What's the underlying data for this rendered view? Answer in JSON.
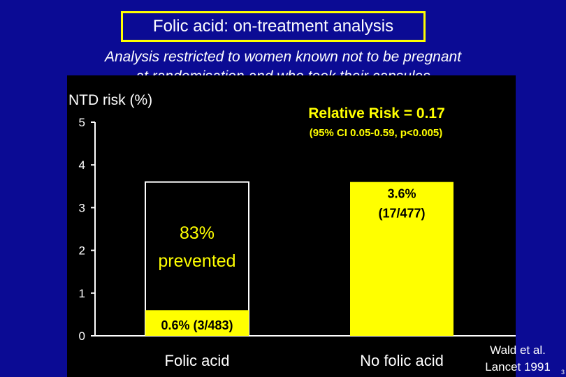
{
  "slide": {
    "title": "Folic acid: on-treatment analysis",
    "subtitle_line1": "Analysis restricted to women known not to be pregnant",
    "subtitle_line2": "at randomisation and who took their capsules",
    "citation_line1": "Wald et al.",
    "citation_line2": "Lancet  1991",
    "page_number": "3"
  },
  "colors": {
    "background": "#0b0b94",
    "plot_background": "#000000",
    "accent": "#ffff00",
    "text": "#ffffff",
    "bar_text": "#000000"
  },
  "chart_data": {
    "type": "bar",
    "ylabel": "NTD risk (%)",
    "ylim": [
      0,
      5
    ],
    "yticks": [
      0,
      1,
      2,
      3,
      4,
      5
    ],
    "categories": [
      "Folic acid",
      "No folic acid"
    ],
    "values": [
      0.6,
      3.6
    ],
    "value_labels": [
      "0.6% (3/483)",
      [
        "3.6%",
        "(17/477)"
      ]
    ],
    "reference_bar": {
      "category": "Folic acid",
      "value": 3.6,
      "style": "outline"
    },
    "annotations": {
      "relative_risk": "Relative Risk = 0.17",
      "confidence": "(95% CI  0.05-0.59,  p<0.005)",
      "prevented_line1": "83%",
      "prevented_line2": "prevented"
    },
    "grid": false
  }
}
